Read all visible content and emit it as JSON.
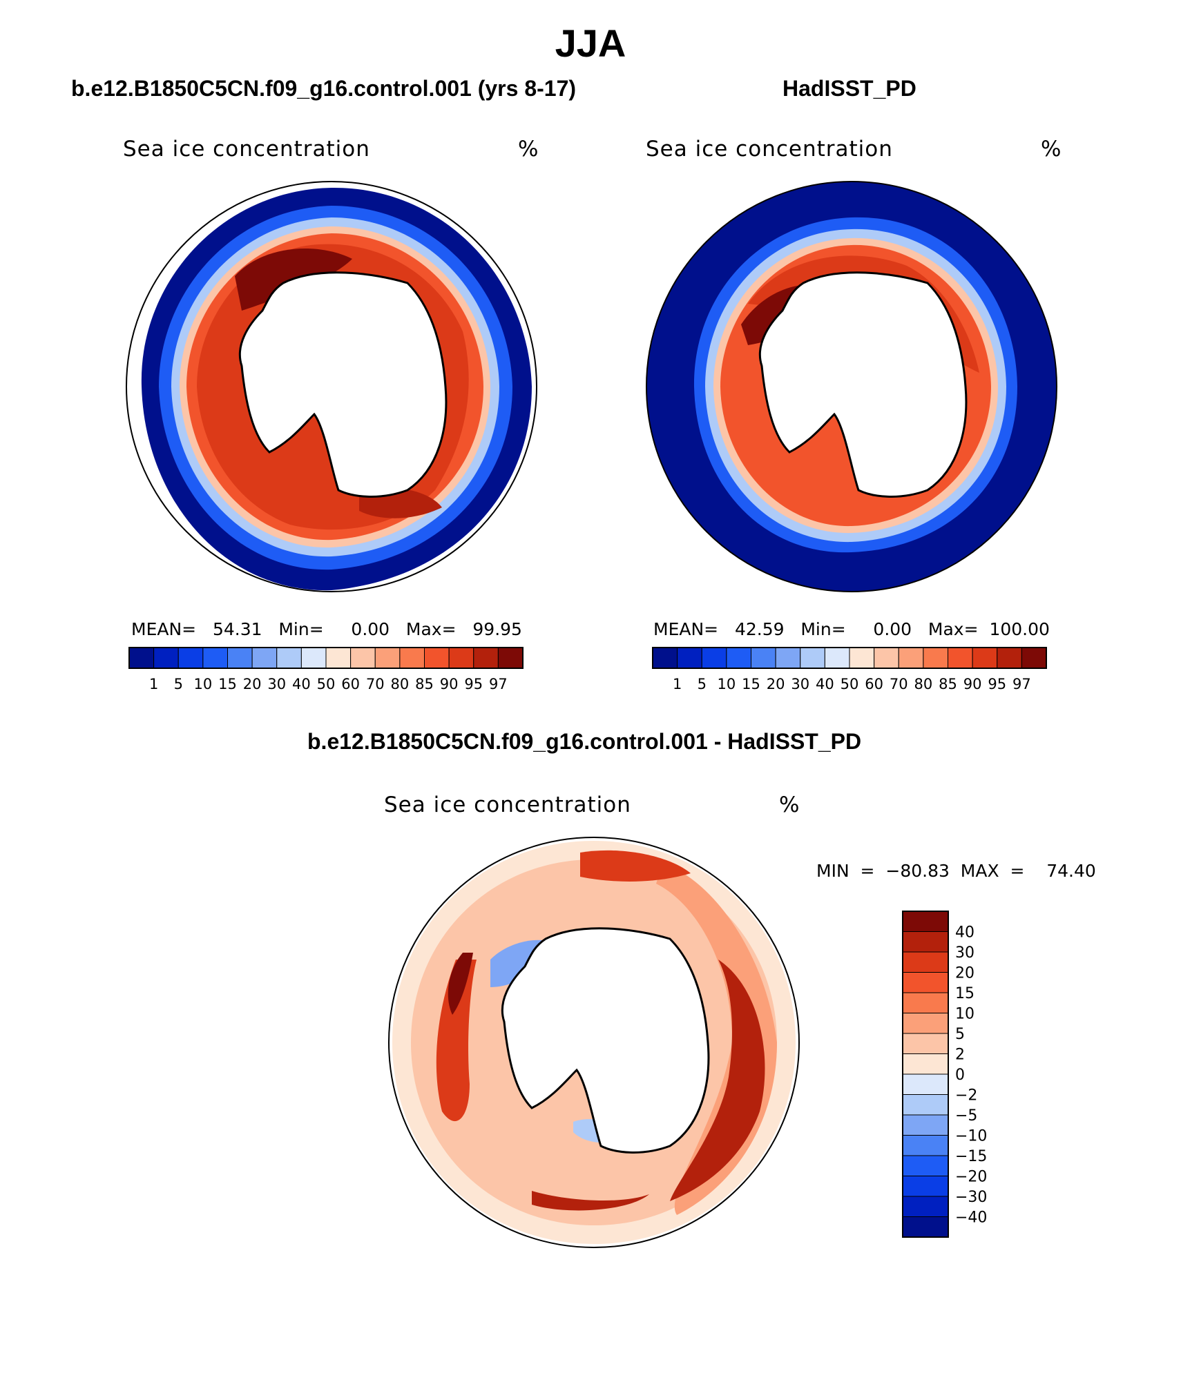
{
  "title": "JJA",
  "panels": [
    {
      "id": "model",
      "case_title": "b.e12.B1850C5CN.f09_g16.control.001 (yrs 8-17)",
      "variable": "Sea ice concentration",
      "units": "%",
      "stats": "MEAN=   54.31   Min=     0.00   Max=   99.95"
    },
    {
      "id": "obs",
      "case_title": "HadISST_PD",
      "variable": "Sea ice concentration",
      "units": "%",
      "stats": "MEAN=   42.59   Min=     0.00   Max=  100.00"
    },
    {
      "id": "diff",
      "case_title": "b.e12.B1850C5CN.f09_g16.control.001 - HadISST_PD",
      "variable": "Sea ice concentration",
      "units": "%",
      "stats": "MIN  =  −80.83  MAX  =    74.40"
    }
  ],
  "colorbar_abs": {
    "labels": [
      "1",
      "5",
      "10",
      "15",
      "20",
      "30",
      "40",
      "50",
      "60",
      "70",
      "80",
      "85",
      "90",
      "95",
      "97"
    ],
    "colors": [
      "#00108c",
      "#0020c0",
      "#0a3ee6",
      "#1e5cf5",
      "#4a82f5",
      "#7ea6f5",
      "#aecbf8",
      "#dce8fb",
      "#fde6d4",
      "#fcc5a8",
      "#fba079",
      "#f97a4d",
      "#f2542c",
      "#dc3a18",
      "#b3210c",
      "#7d0a06"
    ]
  },
  "colorbar_diff": {
    "labels": [
      "40",
      "30",
      "20",
      "15",
      "10",
      "5",
      "2",
      "0",
      "−2",
      "−5",
      "−10",
      "−15",
      "−20",
      "−30",
      "−40"
    ],
    "colors": [
      "#7d0a06",
      "#b3210c",
      "#dc3a18",
      "#f2542c",
      "#f97a4d",
      "#fba079",
      "#fcc5a8",
      "#fde6d4",
      "#dce8fb",
      "#aecbf8",
      "#7ea6f5",
      "#4a82f5",
      "#1e5cf5",
      "#0a3ee6",
      "#0020c0",
      "#00108c"
    ]
  }
}
